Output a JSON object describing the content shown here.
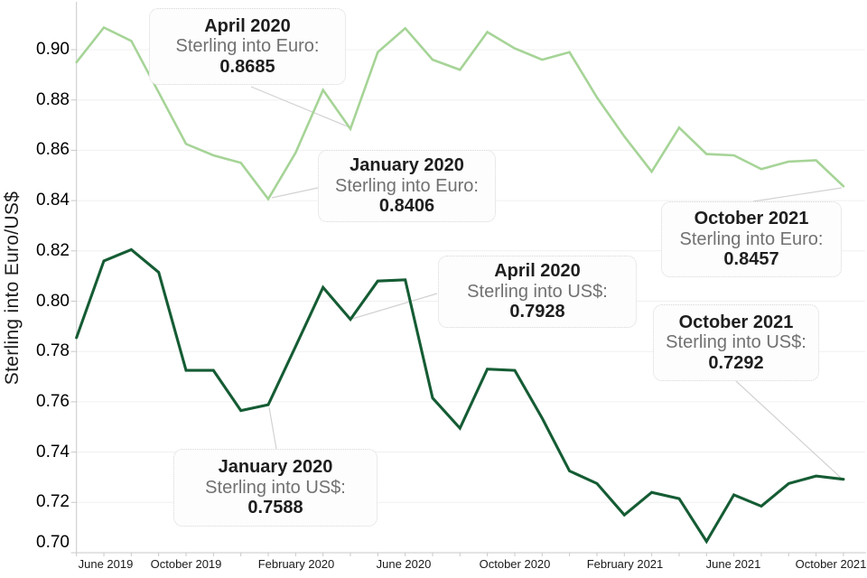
{
  "y_axis": {
    "title": "Sterling into Euro/US$",
    "ticks": [
      {
        "label": "0.90",
        "value": 0.9
      },
      {
        "label": "0.88",
        "value": 0.88
      },
      {
        "label": "0.86",
        "value": 0.86
      },
      {
        "label": "0.84",
        "value": 0.84
      },
      {
        "label": "0.82",
        "value": 0.82
      },
      {
        "label": "0.80",
        "value": 0.8
      },
      {
        "label": "0.78",
        "value": 0.78
      },
      {
        "label": "0.76",
        "value": 0.76
      },
      {
        "label": "0.74",
        "value": 0.74
      },
      {
        "label": "0.72",
        "value": 0.72
      },
      {
        "label": "0.70",
        "value": 0.7
      }
    ]
  },
  "x_axis": {
    "labels": [
      "June 2019",
      "October 2019",
      "February 2020",
      "June 2020",
      "October 2020",
      "February 2021",
      "June 2021",
      "October 2021"
    ]
  },
  "chart_data": {
    "type": "line",
    "x": [
      "June 2019",
      "July 2019",
      "August 2019",
      "September 2019",
      "October 2019",
      "November 2019",
      "December 2019",
      "January 2020",
      "February 2020",
      "March 2020",
      "April 2020",
      "May 2020",
      "June 2020",
      "July 2020",
      "August 2020",
      "September 2020",
      "October 2020",
      "November 2020",
      "December 2020",
      "January 2021",
      "February 2021",
      "March 2021",
      "April 2021",
      "May 2021",
      "June 2021",
      "July 2021",
      "August 2021",
      "September 2021",
      "October 2021"
    ],
    "series": [
      {
        "name": "Sterling into Euro",
        "color": "#a6d497",
        "values": [
          0.895,
          0.9088,
          0.9035,
          0.883,
          0.8625,
          0.858,
          0.855,
          0.8406,
          0.859,
          0.884,
          0.8685,
          0.899,
          0.9085,
          0.896,
          0.892,
          0.907,
          0.9005,
          0.896,
          0.899,
          0.881,
          0.8655,
          0.8515,
          0.869,
          0.8585,
          0.858,
          0.8525,
          0.8555,
          0.856,
          0.8457
        ]
      },
      {
        "name": "Sterling into US$",
        "color": "#155c34",
        "values": [
          0.7855,
          0.816,
          0.8205,
          0.8115,
          0.7725,
          0.7725,
          0.7565,
          0.7588,
          0.782,
          0.8055,
          0.7928,
          0.808,
          0.8085,
          0.7615,
          0.7495,
          0.773,
          0.7725,
          0.7535,
          0.7325,
          0.7275,
          0.715,
          0.724,
          0.7215,
          0.7045,
          0.723,
          0.7185,
          0.7275,
          0.7305,
          0.7292
        ]
      }
    ],
    "ylabel": "Sterling into Euro/US$",
    "ylim": [
      0.7,
      0.915
    ],
    "grid": "horizontal",
    "legend": "none"
  },
  "callouts": [
    {
      "title": "April 2020",
      "series_label": "Sterling into Euro:",
      "value": "0.8685"
    },
    {
      "title": "January 2020",
      "series_label": "Sterling into Euro:",
      "value": "0.8406"
    },
    {
      "title": "October 2021",
      "series_label": "Sterling into Euro:",
      "value": "0.8457"
    },
    {
      "title": "April 2020",
      "series_label": "Sterling into US$:",
      "value": "0.7928"
    },
    {
      "title": "October 2021",
      "series_label": "Sterling into US$:",
      "value": "0.7292"
    },
    {
      "title": "January 2020",
      "series_label": "Sterling into US$:",
      "value": "0.7588"
    }
  ],
  "colors": {
    "grid": "#f0f0f0",
    "axis": "#c9c9c9",
    "connector": "#d2d2d2"
  }
}
